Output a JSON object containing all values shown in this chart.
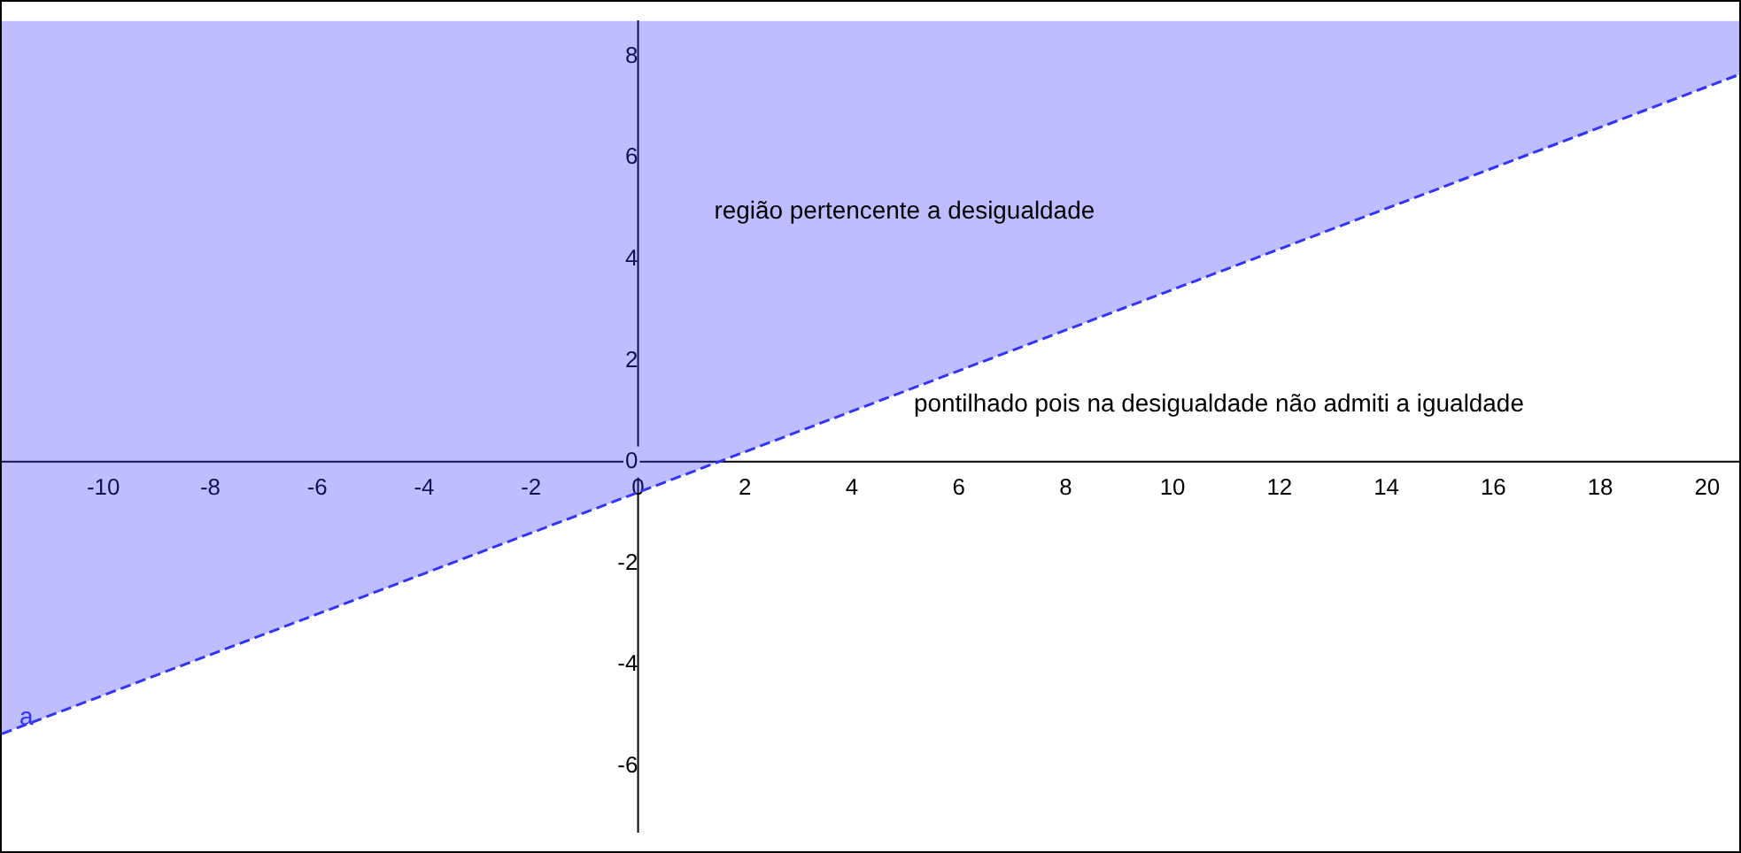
{
  "chart_data": {
    "type": "line",
    "xlim": [
      -11.9,
      20.6
    ],
    "ylim": [
      -7.3,
      8.7
    ],
    "xticks": [
      -10,
      -8,
      -6,
      -4,
      -2,
      0,
      2,
      4,
      6,
      8,
      10,
      12,
      14,
      16,
      18,
      20
    ],
    "yticks": [
      -6,
      -4,
      -2,
      0,
      2,
      4,
      6,
      8
    ],
    "series": [
      {
        "name": "a",
        "type": "line",
        "color": "#3333ff",
        "x": [
          -11.9,
          20.6
        ],
        "values": [
          -5.36,
          7.64
        ],
        "lower": [
          -5.36,
          7.64
        ],
        "upper": [
          8.7,
          8.7
        ]
      }
    ],
    "line_style": "dashed",
    "marker": "none",
    "grid": false,
    "legend": false,
    "annotations": [
      "região pertencente a desigualdade",
      "pontilhado pois na desigualdade não admiti a igualdade"
    ]
  }
}
